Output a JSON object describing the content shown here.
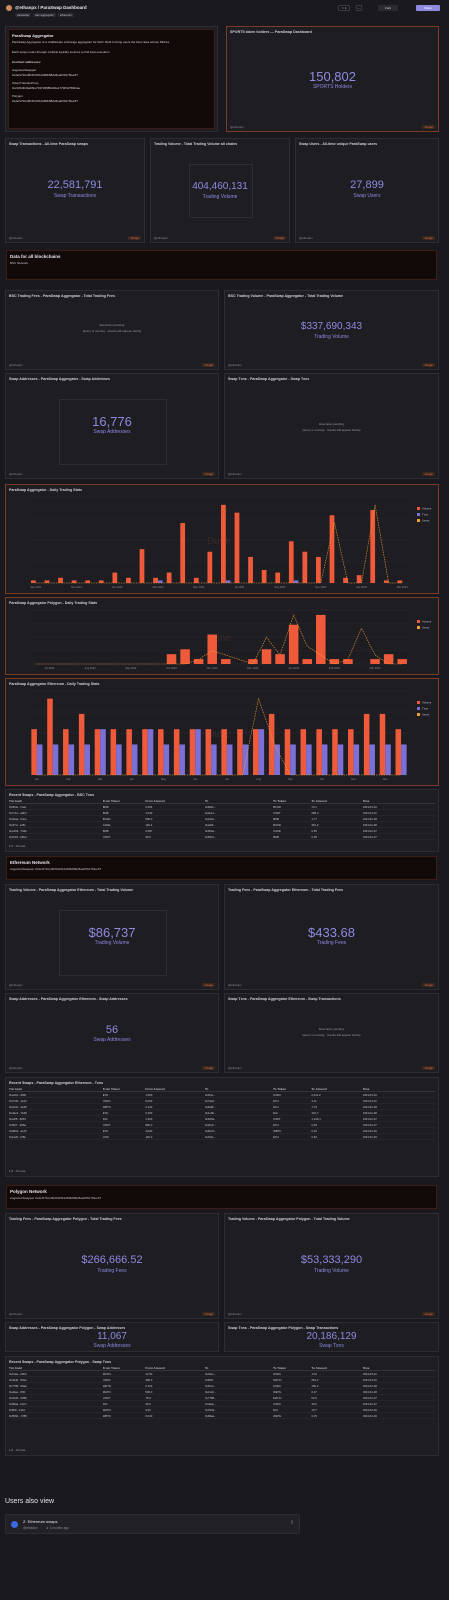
{
  "header": {
    "author": "@ethanpx",
    "title": "@ethanpx / ParaSwap Dashboard",
    "tags": [
      "paraswap",
      "dex aggregator",
      "ethereum"
    ],
    "star_count": "1",
    "fork_label": "Fork",
    "share_label": "Share"
  },
  "intro": {
    "title": "ParaSwap Aggregator",
    "lines": [
      "ParaSwap is a middleware aggregator, ",
      "ParaSwap Aggregator is a middleware exchange aggregator for DeFi. Built to bring users the best rates across DEXes.",
      "Each swap routes through multiple liquidity sources to find best execution.",
      "Contract addresses:",
      "AugustusSwapper",
      "0xdef171fe48cf0115b1d80b88dc8eab59176fee57",
      "TokenTransferProxy",
      "0x216b4b4ba9f3e719726886d34a177484278bfcae",
      "Polygon",
      "0xdef171fe48cf0115b1d80b88dc8eab59176fee57"
    ]
  },
  "holders": {
    "title": "SPORTS token holders — ParaSwap Dashboard",
    "value": "150,802",
    "label": "SPORTS Holders"
  },
  "kpis_top": [
    {
      "title": "Swap Transactions - All-time ParaSwap swaps",
      "value": "22,581,791",
      "label": "Swap Transactions"
    },
    {
      "title": "Trading Volume - Total Trading Volume all chains",
      "value": "404,460,131",
      "label": "Trading Volume"
    },
    {
      "title": "Swap Users - All-time unique ParaSwap users",
      "value": "27,899",
      "label": "Swap Users"
    }
  ],
  "bsc_section": {
    "title": "Data for all blockchains",
    "sub": "BSC Network"
  },
  "bsc_row1": [
    {
      "title": "BSC Trading Fees - ParaSwap Aggregator - Total Trading Fees",
      "pending": "Query is running · results will appear shortly",
      "pending2": "Execution pending"
    },
    {
      "title": "BSC Trading Volume - ParaSwap Aggregator - Total Trading Volume",
      "value": "$337,690,343",
      "label": "Trading Volume"
    }
  ],
  "bsc_row2": [
    {
      "title": "Swap Addresses - ParaSwap Aggregator - Swap Addresses",
      "value": "16,776",
      "label": "Swap Addresses"
    },
    {
      "title": "Swap Txns - ParaSwap Aggregator - Swap Txns",
      "pending": "Query is running · results will appear shortly",
      "pending2": "Execution pending"
    }
  ],
  "charts": [
    {
      "title": "ParaSwap Aggregator - Daily Trading Stats",
      "watermark": "Dune",
      "chart_data": {
        "type": "bar",
        "categories": [
          "Sep 2021",
          "",
          "",
          "Nov 2021",
          "",
          "",
          "Jan 2022",
          "",
          "",
          "Mar 2022",
          "",
          "",
          "May 2022",
          "",
          "",
          "Jul 2022",
          "",
          "",
          "Sep 2022",
          "",
          "",
          "Nov 2022",
          "",
          "",
          "Jan 2023",
          "",
          "",
          "Mar 2023"
        ],
        "series": [
          {
            "name": "Volume",
            "color": "#ef5b3a",
            "values": [
              1,
              1,
              2,
              1,
              1,
              1,
              4,
              2,
              13,
              2,
              4,
              23,
              2,
              12,
              30,
              27,
              10,
              5,
              4,
              16,
              12,
              10,
              26,
              2,
              3,
              28,
              1,
              1
            ]
          },
          {
            "name": "Txns",
            "color": "#7b6fd8",
            "values": [
              0,
              0,
              0,
              0,
              0,
              0,
              0,
              0,
              0,
              1,
              0,
              0,
              0,
              0,
              1,
              0,
              0,
              0,
              0,
              1,
              0,
              0,
              0,
              0,
              0,
              0,
              0,
              0
            ]
          }
        ],
        "line": {
          "name": "Users",
          "color": "#f0a030",
          "values": [
            0,
            0,
            0,
            0,
            0,
            0,
            0,
            0,
            0,
            0,
            0,
            0,
            0,
            0,
            0,
            0,
            0,
            0,
            0,
            0,
            0,
            0,
            70,
            0,
            0,
            90,
            0,
            0
          ]
        }
      }
    },
    {
      "title": "ParaSwap Aggregator Polygon - Daily Trading Stats",
      "watermark": "Dune",
      "chart_data": {
        "type": "bar",
        "categories": [
          "",
          "Jul 2022",
          "",
          "",
          "Aug 2022",
          "",
          "",
          "Sep 2022",
          "",
          "",
          "Oct 2022",
          "",
          "",
          "Nov 2022",
          "",
          "",
          "Dec 2022",
          "",
          "",
          "Jan 2023",
          "",
          "",
          "Feb 2023",
          "",
          "",
          "Mar 2023",
          "",
          ""
        ],
        "series": [
          {
            "name": "Volume",
            "color": "#ef5b3a",
            "values": [
              0,
              0,
              0,
              0,
              0,
              0,
              0,
              0,
              0,
              0,
              2,
              3,
              1,
              6,
              1,
              0,
              1,
              3,
              2,
              8,
              1,
              10,
              1,
              1,
              0,
              1,
              2,
              1
            ]
          }
        ],
        "line": {
          "name": "Users",
          "color": "#f0a030",
          "values": [
            0,
            0,
            0,
            0,
            0,
            0,
            0,
            0,
            0,
            0,
            0,
            0,
            1,
            3,
            2,
            1,
            0,
            6,
            2,
            11,
            4,
            2,
            0,
            1,
            8,
            2,
            0,
            0
          ]
        }
      }
    },
    {
      "title": "ParaSwap Aggregator Ethereum - Daily Trading Stats",
      "watermark": "Dune",
      "chart_data": {
        "type": "bar",
        "categories": [
          "Jan",
          "",
          "Feb",
          "",
          "Mar",
          "",
          "Apr",
          "",
          "May",
          "",
          "Jun",
          "",
          "Jul",
          "",
          "Aug",
          "",
          "Sep",
          "",
          "Oct",
          "",
          "Nov",
          "",
          "Dec",
          ""
        ],
        "series": [
          {
            "name": "Volume",
            "color": "#ef5b3a",
            "values": [
              3,
              5,
              3,
              4,
              3,
              3,
              3,
              3,
              3,
              3,
              3,
              3,
              3,
              3,
              3,
              4,
              3,
              3,
              3,
              3,
              3,
              4,
              4,
              3
            ]
          },
          {
            "name": "Txns",
            "color": "#7b6fd8",
            "values": [
              2,
              2,
              2,
              2,
              3,
              2,
              2,
              3,
              2,
              2,
              3,
              2,
              2,
              2,
              3,
              2,
              2,
              2,
              2,
              2,
              2,
              2,
              2,
              2
            ]
          }
        ],
        "line": {
          "name": "Users",
          "color": "#f0a030",
          "values": [
            0,
            0,
            0,
            0,
            0,
            0,
            0,
            0,
            0,
            0,
            0,
            0,
            0,
            0,
            10,
            4,
            0,
            0,
            0,
            0,
            0,
            0,
            0,
            0
          ]
        }
      }
    }
  ],
  "tables": [
    {
      "title": "Recent Swaps - ParaSwap Aggregator - BSC Txns",
      "columns": [
        "Txn hash",
        "From Token",
        "From Amount",
        "To",
        "To Token",
        "To Amount",
        "Time"
      ],
      "rows": [
        [
          "0x3b0e...f1a2",
          "BNB",
          "0.254",
          "0x8a5c...",
          "BUSD",
          "72.1",
          "2023-03-01"
        ],
        [
          "0x7c12...a9b3",
          "BNB",
          "1.020",
          "0x4e11...",
          "USDT",
          "288.3",
          "2023-03-01"
        ],
        [
          "0x91aa...04ce",
          "BUSD",
          "500.0",
          "0x1d2e...",
          "BNB",
          "1.77",
          "2023-02-28"
        ],
        [
          "0x2f7d...cc81",
          "CAKE",
          "120.4",
          "0xa0f3...",
          "BUSD",
          "451.2",
          "2023-02-28"
        ],
        [
          "0xe4b9...7d20",
          "BNB",
          "0.087",
          "0x5b6a...",
          "CAKE",
          "6.55",
          "2023-02-27"
        ],
        [
          "0x0c33...b8e4",
          "USDT",
          "99.0",
          "0x99cd...",
          "BNB",
          "0.35",
          "2023-02-27"
        ]
      ],
      "pager": "1-6 · 10 rows"
    },
    {
      "title": "Recent Swaps - ParaSwap Aggregator Ethereum - Txns",
      "columns": [
        "Txn hash",
        "From Token",
        "From Amount",
        "To",
        "To Token",
        "To Amount",
        "Time"
      ],
      "rows": [
        [
          "0xa1b2...9f00",
          "ETH",
          "1.500",
          "0x3f4e...",
          "USDC",
          "2,411.2",
          "2023-03-01"
        ],
        [
          "0xb7c8...1e22",
          "USDC",
          "5,000",
          "0x7a2d...",
          "ETH",
          "3.11",
          "2023-03-01"
        ],
        [
          "0xc0d1...4a35",
          "WBTC",
          "0.120",
          "0x9e8f...",
          "ETH",
          "1.79",
          "2023-02-28"
        ],
        [
          "0xd2e3...7b48",
          "ETH",
          "0.250",
          "0x1c0b...",
          "DAI",
          "401.7",
          "2023-02-28"
        ],
        [
          "0xe4f5...8c59",
          "DAI",
          "1,200",
          "0x6d5a...",
          "USDT",
          "1,199.1",
          "2023-02-27"
        ],
        [
          "0xf607...9d6a",
          "USDT",
          "800.0",
          "0x2b4c...",
          "ETH",
          "0.49",
          "2023-02-27"
        ],
        [
          "0x0819...ae7b",
          "ETH",
          "3.000",
          "0x8e7d...",
          "WBTC",
          "0.20",
          "2023-02-26"
        ],
        [
          "0x1a2b...bf8c",
          "LINK",
          "140.0",
          "0x4f3e...",
          "ETH",
          "0.62",
          "2023-02-26"
        ]
      ],
      "pager": "1-8 · 10 rows"
    },
    {
      "title": "Recent Swaps - ParaSwap Aggregator Polygon - Swap Txns",
      "columns": [
        "Txn hash",
        "From Token",
        "From Amount",
        "To",
        "To Token",
        "To Amount",
        "Time"
      ],
      "rows": [
        [
          "0x11aa...22bb",
          "MATIC",
          "12.50",
          "0x33cc...",
          "USDC",
          "14.9",
          "2023-03-01"
        ],
        [
          "0x44dd...55ee",
          "USDC",
          "300.0",
          "0x66ff...",
          "MATIC",
          "251.2",
          "2023-03-01"
        ],
        [
          "0x7788...99aa",
          "WETH",
          "0.100",
          "0xbbcc...",
          "USDC",
          "160.3",
          "2023-02-28"
        ],
        [
          "0xddee...ff00",
          "MATIC",
          "500.0",
          "0x1122...",
          "WETH",
          "0.37",
          "2023-02-28"
        ],
        [
          "0x3344...5566",
          "USDT",
          "75.0",
          "0x7788...",
          "MATIC",
          "62.9",
          "2023-02-27"
        ],
        [
          "0x99aa...bbcc",
          "DAI",
          "40.0",
          "0xddee...",
          "USDC",
          "39.9",
          "2023-02-27"
        ],
        [
          "0xff00...1122",
          "MATIC",
          "9.00",
          "0x3344...",
          "DAI",
          "10.7",
          "2023-02-26"
        ],
        [
          "0x5566...7788",
          "WBTC",
          "0.010",
          "0x99aa...",
          "WETH",
          "0.15",
          "2023-02-26"
        ]
      ],
      "pager": "1-8 · 10 rows"
    }
  ],
  "eth_section": {
    "title": "Ethereum Network",
    "sub": "AugustusSwapper 0xdef171fe48cf0115b1d80b88dc8eab59176fee57"
  },
  "eth_row1": [
    {
      "title": "Trading Volume - ParaSwap Aggregator Ethereum - Total Trading Volume",
      "value": "$86,737",
      "label": "Trading Volume"
    },
    {
      "title": "Trading Fees - ParaSwap Aggregator Ethereum - Total Trading Fees",
      "value": "$433.68",
      "label": "Trading Fees"
    }
  ],
  "eth_row2": [
    {
      "title": "Swap Addresses - ParaSwap Aggregator Ethereum - Swap Addresses",
      "value": "56",
      "label": "Swap Addresses"
    },
    {
      "title": "Swap Txns - ParaSwap Aggregator Ethereum - Swap Transactions",
      "pending": "Query is running · results will appear shortly",
      "pending2": "Execution pending"
    }
  ],
  "poly_section": {
    "title": "Polygon Network",
    "sub": "AugustusSwapper 0xdef171fe48cf0115b1d80b88dc8eab59176fee57"
  },
  "poly_row1": [
    {
      "title": "Trading Fees - ParaSwap Aggregator Polygon - Total Trading Fees",
      "value": "$266,666.52",
      "label": "Trading Fees"
    },
    {
      "title": "Trading Volume - ParaSwap Aggregator Polygon - Total Trading Volume",
      "value": "$53,333,290",
      "label": "Trading Volume"
    }
  ],
  "poly_row2": [
    {
      "title": "Swap Addresses - ParaSwap Aggregator Polygon - Swap Addresses",
      "value": "11,067",
      "label": "Swap Addresses"
    },
    {
      "title": "Swap Txns - ParaSwap Aggregator Polygon - Swap Transactions",
      "value": "20,186,129",
      "label": "Swap Txns"
    }
  ],
  "footer": {
    "heading": "Users also view",
    "card_title": "Z. Ethereum swaps",
    "card_author": "@ethanpx",
    "card_meta": "★ 3 months ago"
  },
  "panel_footer": {
    "who": "@ethanpx",
    "badge": "1d ago"
  },
  "colors": {
    "bar": "#ef5b3a",
    "purple": "#7b6fd8",
    "line": "#f0a030",
    "accent": "#8d8ae0"
  }
}
